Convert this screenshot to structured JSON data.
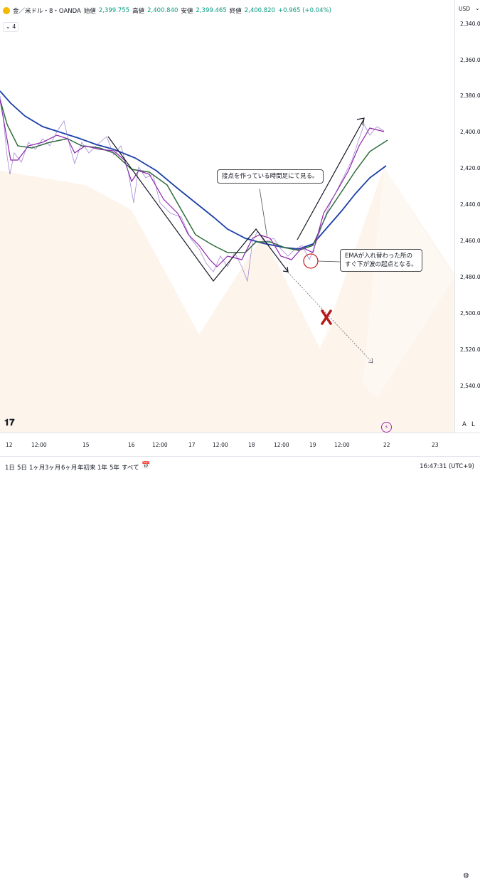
{
  "legend": {
    "symbol": "金／米ドル・8・OANDA",
    "open_label": "始値",
    "open": "2,399.755",
    "high_label": "高値",
    "high": "2,400.840",
    "low_label": "安値",
    "low": "2,399.465",
    "close_label": "終値",
    "close": "2,400.820",
    "change": "+0.965 (+0.04%)",
    "collapse_button": "4"
  },
  "price_axis": {
    "currency": "USD",
    "ticks": [
      "2,340.000",
      "2,360.000",
      "2,380.000",
      "2,400.000",
      "2,420.000",
      "2,440.000",
      "2,460.000",
      "2,480.000",
      "2,500.000",
      "2,520.000",
      "2,540.000"
    ]
  },
  "time_axis": {
    "ticks": [
      "12",
      "12:00",
      "15",
      "16",
      "12:00",
      "17",
      "12:00",
      "18",
      "12:00",
      "19",
      "12:00",
      "22",
      "23"
    ]
  },
  "controls": {
    "auto_label": "A",
    "log_label": "L"
  },
  "callouts": {
    "top": "接点を作っている時間足にて見る。",
    "right_line1": "EMAが入れ替わった所の",
    "right_line2": "すぐ下が波の起点となる。"
  },
  "bottom_bar": {
    "ranges": [
      "1日",
      "5日",
      "1ヶ月",
      "3ヶ月",
      "6ヶ月",
      "年初来",
      "1年",
      "5年",
      "すべて"
    ],
    "clock": "16:47:31 (UTC+9)"
  },
  "colors": {
    "ema_slow": "#1a3fa8",
    "ema_mid": "#2e6b3a",
    "ema_fast": "#8e24aa",
    "candle": "#7e57c2",
    "drawing": "#131722",
    "cross": "#b71c1c",
    "shade": "#fdf4ec"
  }
}
